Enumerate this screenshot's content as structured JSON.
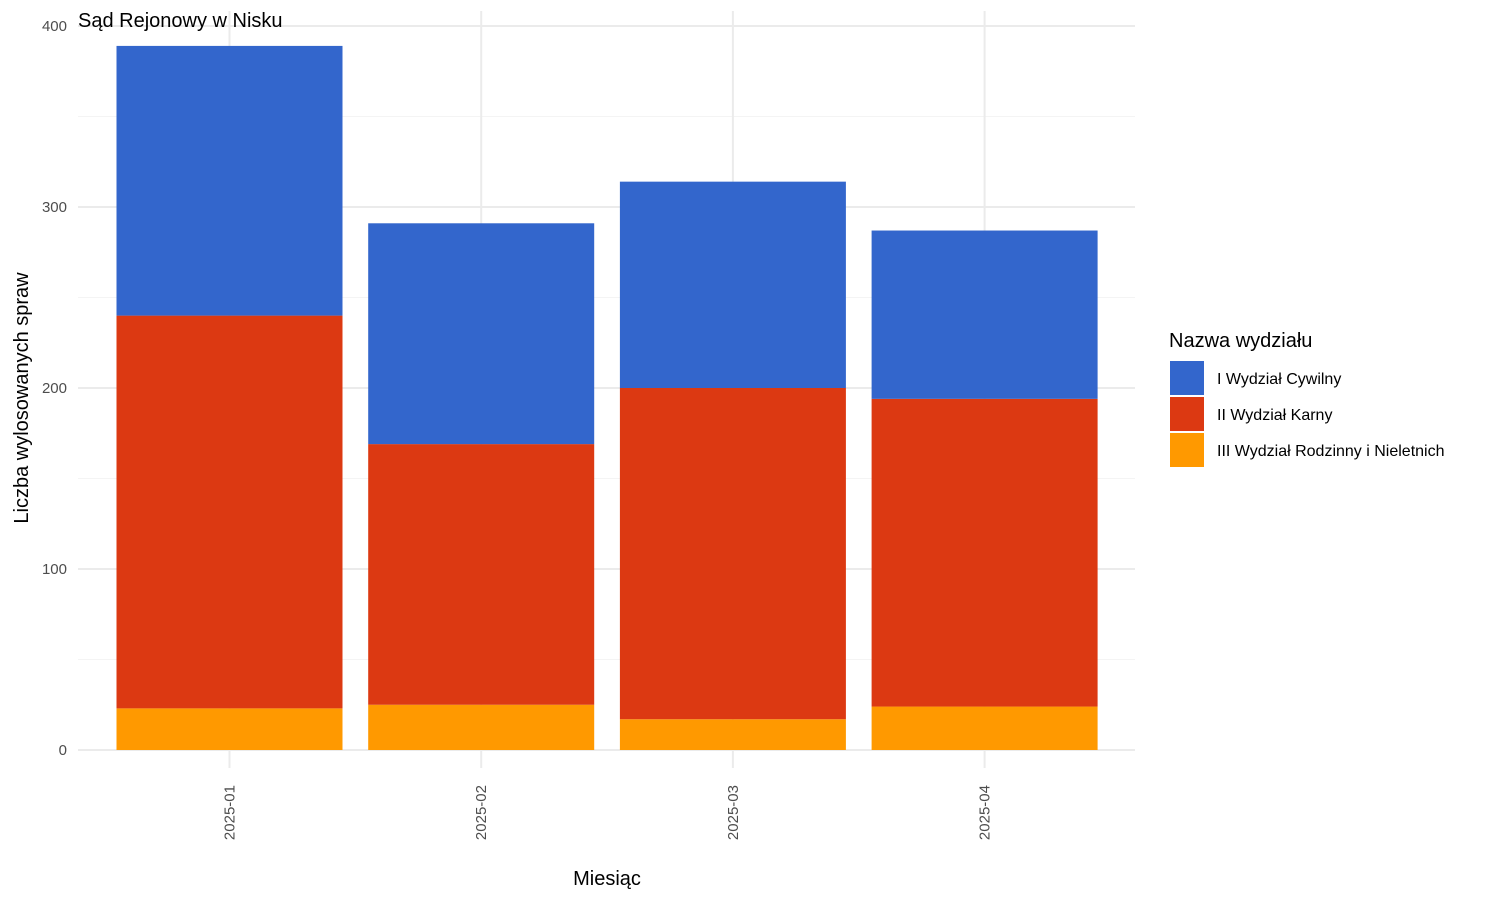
{
  "chart_data": {
    "type": "bar",
    "stacked": true,
    "title": "Sąd Rejonowy w Nisku",
    "xlabel": "Miesiąc",
    "ylabel": "Liczba wylosowanych spraw",
    "categories": [
      "2025-01",
      "2025-02",
      "2025-03",
      "2025-04"
    ],
    "ylim": [
      0,
      400
    ],
    "yticks": [
      0,
      100,
      200,
      300,
      400
    ],
    "grid": true,
    "legend_title": "Nazwa wydziału",
    "legend_position": "right",
    "series": [
      {
        "name": "III Wydział Rodzinny i Nieletnich",
        "color": "#FF9900",
        "values": [
          23,
          25,
          17,
          24
        ]
      },
      {
        "name": "II Wydział Karny",
        "color": "#DC3912",
        "values": [
          217,
          144,
          183,
          170
        ]
      },
      {
        "name": "I Wydział Cywilny",
        "color": "#3366CC",
        "values": [
          149,
          122,
          114,
          93
        ]
      }
    ],
    "legend_order": [
      "I Wydział Cywilny",
      "II Wydział Karny",
      "III Wydział Rodzinny i Nieletnich"
    ]
  }
}
